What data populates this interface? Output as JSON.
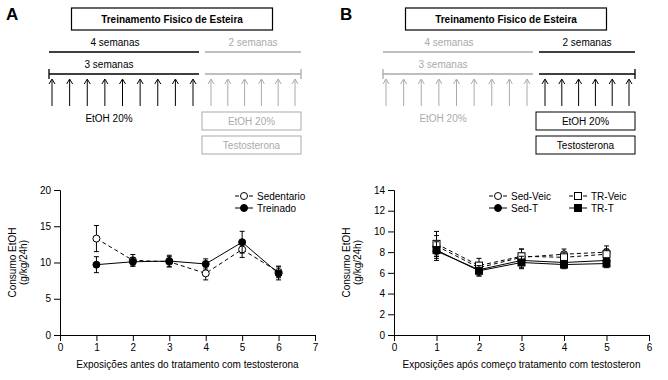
{
  "chart_data": [
    {
      "type": "line",
      "title": "A",
      "annotations": [
        {
          "text": "Treinamento Fisico de Esteira",
          "color": "#000000"
        },
        {
          "text": "4 semanas",
          "color": "#000000"
        },
        {
          "text": "2 semanas",
          "color": "#aaaaaa"
        },
        {
          "text": "3 semanas",
          "color": "#000000"
        },
        {
          "text": "EtOH 20%",
          "color": "#000000"
        },
        {
          "text": "EtOH 20%",
          "color": "#aaaaaa"
        },
        {
          "text": "Testosterona",
          "color": "#aaaaaa"
        }
      ],
      "xlabel": "Exposições antes do tratamento com testosterona",
      "ylabel": "Consumo EtOH\n(g/kg/24h)",
      "x": [
        1,
        2,
        3,
        4,
        5,
        6
      ],
      "series": [
        {
          "name": "Sedentario",
          "color": "#000000",
          "marker": "circle-open",
          "line_style": "dashed",
          "values": [
            13.3,
            10.3,
            10.1,
            8.5,
            11.8,
            8.7
          ],
          "error": [
            1.8,
            0.8,
            0.7,
            0.9,
            1.1,
            0.8
          ]
        },
        {
          "name": "Treinado",
          "color": "#000000",
          "marker": "circle",
          "line_style": "solid",
          "values": [
            9.7,
            10.1,
            10.2,
            9.8,
            12.8,
            8.5
          ],
          "error": [
            1.1,
            0.6,
            0.8,
            0.7,
            1.5,
            0.9
          ]
        }
      ],
      "xlim": [
        0,
        7
      ],
      "ylim": [
        0,
        20
      ],
      "xticks": [
        0,
        1,
        2,
        3,
        4,
        5,
        6,
        7
      ],
      "yticks": [
        0,
        5,
        10,
        15,
        20
      ],
      "grid": false,
      "legend": "upper right"
    },
    {
      "type": "line",
      "title": "B",
      "annotations": [
        {
          "text": "Treinamento Fisico de Esteira",
          "color": "#000000"
        },
        {
          "text": "4 semanas",
          "color": "#aaaaaa"
        },
        {
          "text": "2 semanas",
          "color": "#000000"
        },
        {
          "text": "3 semanas",
          "color": "#aaaaaa"
        },
        {
          "text": "EtOH 20%",
          "color": "#aaaaaa"
        },
        {
          "text": "EtOH 20%",
          "color": "#000000"
        },
        {
          "text": "Testosterona",
          "color": "#000000"
        }
      ],
      "xlabel": "Exposições após começo tratamento com testosteron",
      "ylabel": "Consumo EtOH\n(g/kg/24h)",
      "x": [
        1,
        2,
        3,
        4,
        5
      ],
      "series": [
        {
          "name": "Sed-Veic",
          "color": "#000000",
          "marker": "circle-open",
          "line_style": "dashed",
          "values": [
            8.6,
            6.5,
            7.5,
            7.8,
            8.0
          ],
          "error": [
            1.0,
            0.5,
            0.8,
            0.5,
            0.6
          ]
        },
        {
          "name": "Sed-T",
          "color": "#000000",
          "marker": "circle",
          "line_style": "solid",
          "values": [
            8.1,
            6.3,
            7.2,
            7.0,
            7.2
          ],
          "error": [
            0.9,
            0.6,
            0.7,
            0.4,
            0.5
          ]
        },
        {
          "name": "TR-Veic",
          "color": "#000000",
          "marker": "square-open",
          "line_style": "dashed",
          "values": [
            8.8,
            6.7,
            7.6,
            7.5,
            7.8
          ],
          "error": [
            1.2,
            0.7,
            0.7,
            0.5,
            0.5
          ]
        },
        {
          "name": "TR-T",
          "color": "#000000",
          "marker": "square",
          "line_style": "solid",
          "values": [
            8.2,
            6.2,
            7.0,
            6.8,
            6.9
          ],
          "error": [
            0.8,
            0.5,
            0.6,
            0.4,
            0.4
          ]
        }
      ],
      "xlim": [
        0,
        6
      ],
      "ylim": [
        0,
        14
      ],
      "xticks": [
        0,
        1,
        2,
        3,
        4,
        5,
        6
      ],
      "yticks": [
        0,
        2,
        4,
        6,
        8,
        10,
        12,
        14
      ],
      "grid": false,
      "legend": "upper right"
    }
  ]
}
